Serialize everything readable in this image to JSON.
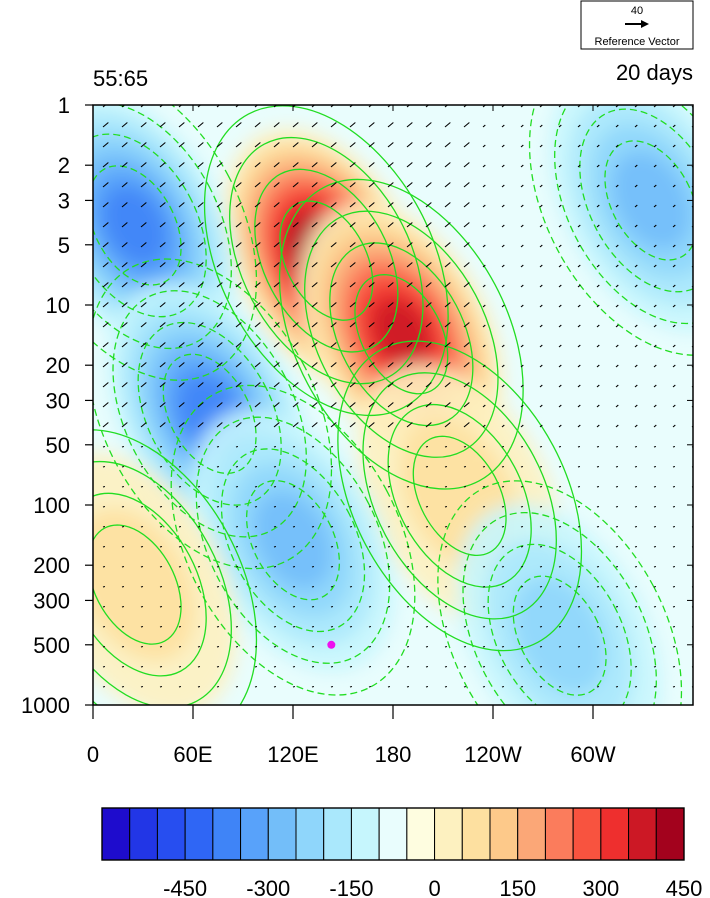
{
  "chart_data": {
    "type": "heatmap",
    "title_left": "55:65",
    "title_right": "20 days",
    "reference_vector": {
      "magnitude": "40",
      "label": "Reference Vector"
    },
    "x_ticks": [
      {
        "lon": 0,
        "label": "0"
      },
      {
        "lon": 60,
        "label": "60E"
      },
      {
        "lon": 120,
        "label": "120E"
      },
      {
        "lon": 180,
        "label": "180"
      },
      {
        "lon": 240,
        "label": "120W"
      },
      {
        "lon": 300,
        "label": "60W"
      }
    ],
    "x_range": [
      0,
      360
    ],
    "y_scale": "log",
    "y_range_hpa": [
      1000,
      1
    ],
    "y_ticks": [
      {
        "p": 1,
        "label": "1"
      },
      {
        "p": 2,
        "label": "2"
      },
      {
        "p": 3,
        "label": "3"
      },
      {
        "p": 5,
        "label": "5"
      },
      {
        "p": 10,
        "label": "10"
      },
      {
        "p": 20,
        "label": "20"
      },
      {
        "p": 30,
        "label": "30"
      },
      {
        "p": 50,
        "label": "50"
      },
      {
        "p": 100,
        "label": "100"
      },
      {
        "p": 200,
        "label": "200"
      },
      {
        "p": 300,
        "label": "300"
      },
      {
        "p": 500,
        "label": "500"
      },
      {
        "p": 1000,
        "label": "1000"
      }
    ],
    "colorbar": {
      "colors": [
        "#1e0ccd",
        "#2236e6",
        "#274ef0",
        "#2f66f5",
        "#3f84f7",
        "#58a2fa",
        "#73bef9",
        "#8fd6fb",
        "#aae8fc",
        "#c6f6fd",
        "#e9fdfd",
        "#fefde0",
        "#fdf1c0",
        "#fde0a0",
        "#fdc98a",
        "#fba777",
        "#fb7c5c",
        "#f8533f",
        "#ee2f2e",
        "#cc1825",
        "#a3021d"
      ],
      "labels": [
        "-450",
        "-300",
        "-150",
        "0",
        "150",
        "300",
        "450"
      ],
      "label_boundaries": [
        3,
        6,
        9,
        12,
        15,
        18,
        21
      ]
    },
    "field_features": [
      {
        "sign": "positive",
        "peak_value": 500,
        "lon": 140,
        "p": 6
      },
      {
        "sign": "positive",
        "peak_value": 420,
        "lon": 185,
        "p": 14
      },
      {
        "sign": "positive",
        "peak_value": 130,
        "lon": 220,
        "p": 90
      },
      {
        "sign": "negative",
        "peak_value": -330,
        "lon": 25,
        "p": 4
      },
      {
        "sign": "negative",
        "peak_value": -300,
        "lon": 70,
        "p": 35
      },
      {
        "sign": "negative",
        "peak_value": -210,
        "lon": 120,
        "p": 150
      },
      {
        "sign": "negative",
        "peak_value": -240,
        "lon": 335,
        "p": 3
      },
      {
        "sign": "negative",
        "peak_value": -160,
        "lon": 280,
        "p": 450
      },
      {
        "sign": "positive",
        "peak_value": 140,
        "lon": 25,
        "p": 250
      }
    ],
    "contour_lines": {
      "color": "#22dd22",
      "solid": "positive",
      "dashed": "negative"
    },
    "marker": {
      "lon": 143,
      "p": 500,
      "color": "#ee11ee"
    }
  }
}
